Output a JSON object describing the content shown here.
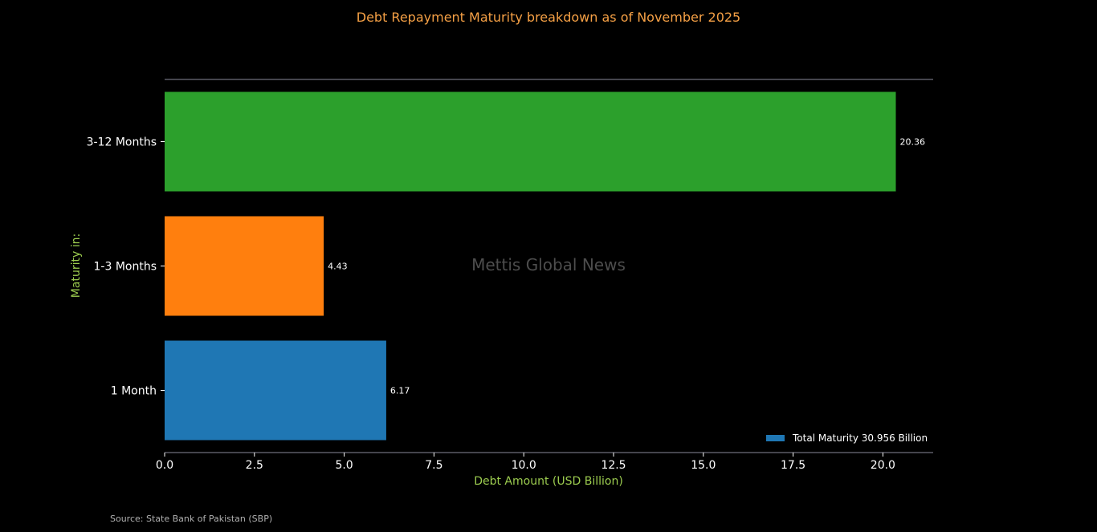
{
  "chart_data": {
    "type": "bar",
    "orientation": "horizontal",
    "title": "Debt Repayment Maturity breakdown as of November 2025",
    "xlabel": "Debt Amount (USD Billion)",
    "ylabel": "Maturity in:",
    "categories": [
      "3-12 Months",
      "1-3 Months",
      "1 Month"
    ],
    "values": [
      20.36,
      4.43,
      6.17
    ],
    "value_labels": [
      "20.36",
      "4.43",
      "6.17"
    ],
    "bar_colors": [
      "#2ca02c",
      "#ff7f0e",
      "#1f77b4"
    ],
    "xlim": [
      0,
      21.4
    ],
    "xticks": [
      0.0,
      2.5,
      5.0,
      7.5,
      10.0,
      12.5,
      15.0,
      17.5,
      20.0
    ],
    "xtick_labels": [
      "0.0",
      "2.5",
      "5.0",
      "7.5",
      "10.0",
      "12.5",
      "15.0",
      "17.5",
      "20.0"
    ],
    "legend": {
      "position": "lower-right",
      "label": "Total Maturity 30.956 Billion",
      "color": "#1f77b4"
    },
    "grid": false
  },
  "watermark": "Mettis Global News",
  "source": "Source: State Bank of Pakistan (SBP)",
  "colors": {
    "background": "#000000",
    "title": "#f5a045",
    "axis_label": "#9ccc4f",
    "spine": "#8a8a9a"
  }
}
